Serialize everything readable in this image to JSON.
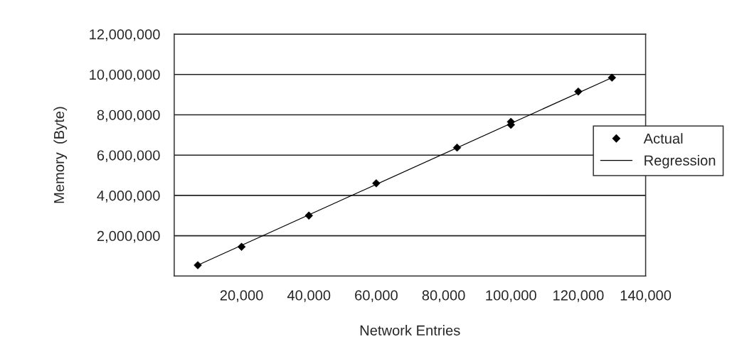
{
  "chart_data": {
    "type": "scatter",
    "xlabel": "Network Entries",
    "ylabel": "Memory  (Byte)",
    "xlim": [
      0,
      140000
    ],
    "ylim": [
      0,
      12000000
    ],
    "xticks": [
      {
        "value": 20000,
        "label": "20,000"
      },
      {
        "value": 40000,
        "label": "40,000"
      },
      {
        "value": 60000,
        "label": "60,000"
      },
      {
        "value": 80000,
        "label": "80,000"
      },
      {
        "value": 100000,
        "label": "100,000"
      },
      {
        "value": 120000,
        "label": "120,000"
      },
      {
        "value": 140000,
        "label": "140,000"
      }
    ],
    "yticks": [
      {
        "value": 2000000,
        "label": "2,000,000"
      },
      {
        "value": 4000000,
        "label": "4,000,000"
      },
      {
        "value": 6000000,
        "label": "6,000,000"
      },
      {
        "value": 8000000,
        "label": "8,000,000"
      },
      {
        "value": 10000000,
        "label": "10,000,000"
      },
      {
        "value": 12000000,
        "label": "12,000,000"
      }
    ],
    "grid": "y",
    "legend": "right",
    "series": [
      {
        "name": "Actual",
        "color": "#000000",
        "marker": "diamond",
        "x": [
          7000,
          20000,
          40000,
          60000,
          84000,
          100000,
          100000,
          120000,
          130000
        ],
        "values": [
          540000,
          1450000,
          3000000,
          4600000,
          6370000,
          7500000,
          7650000,
          9150000,
          9840000
        ]
      },
      {
        "name": "Regression",
        "type": "line",
        "color": "#000000",
        "marker": "none",
        "line_style": "solid",
        "x": [
          7000,
          130000
        ],
        "values": [
          540000,
          9840000
        ]
      }
    ]
  }
}
